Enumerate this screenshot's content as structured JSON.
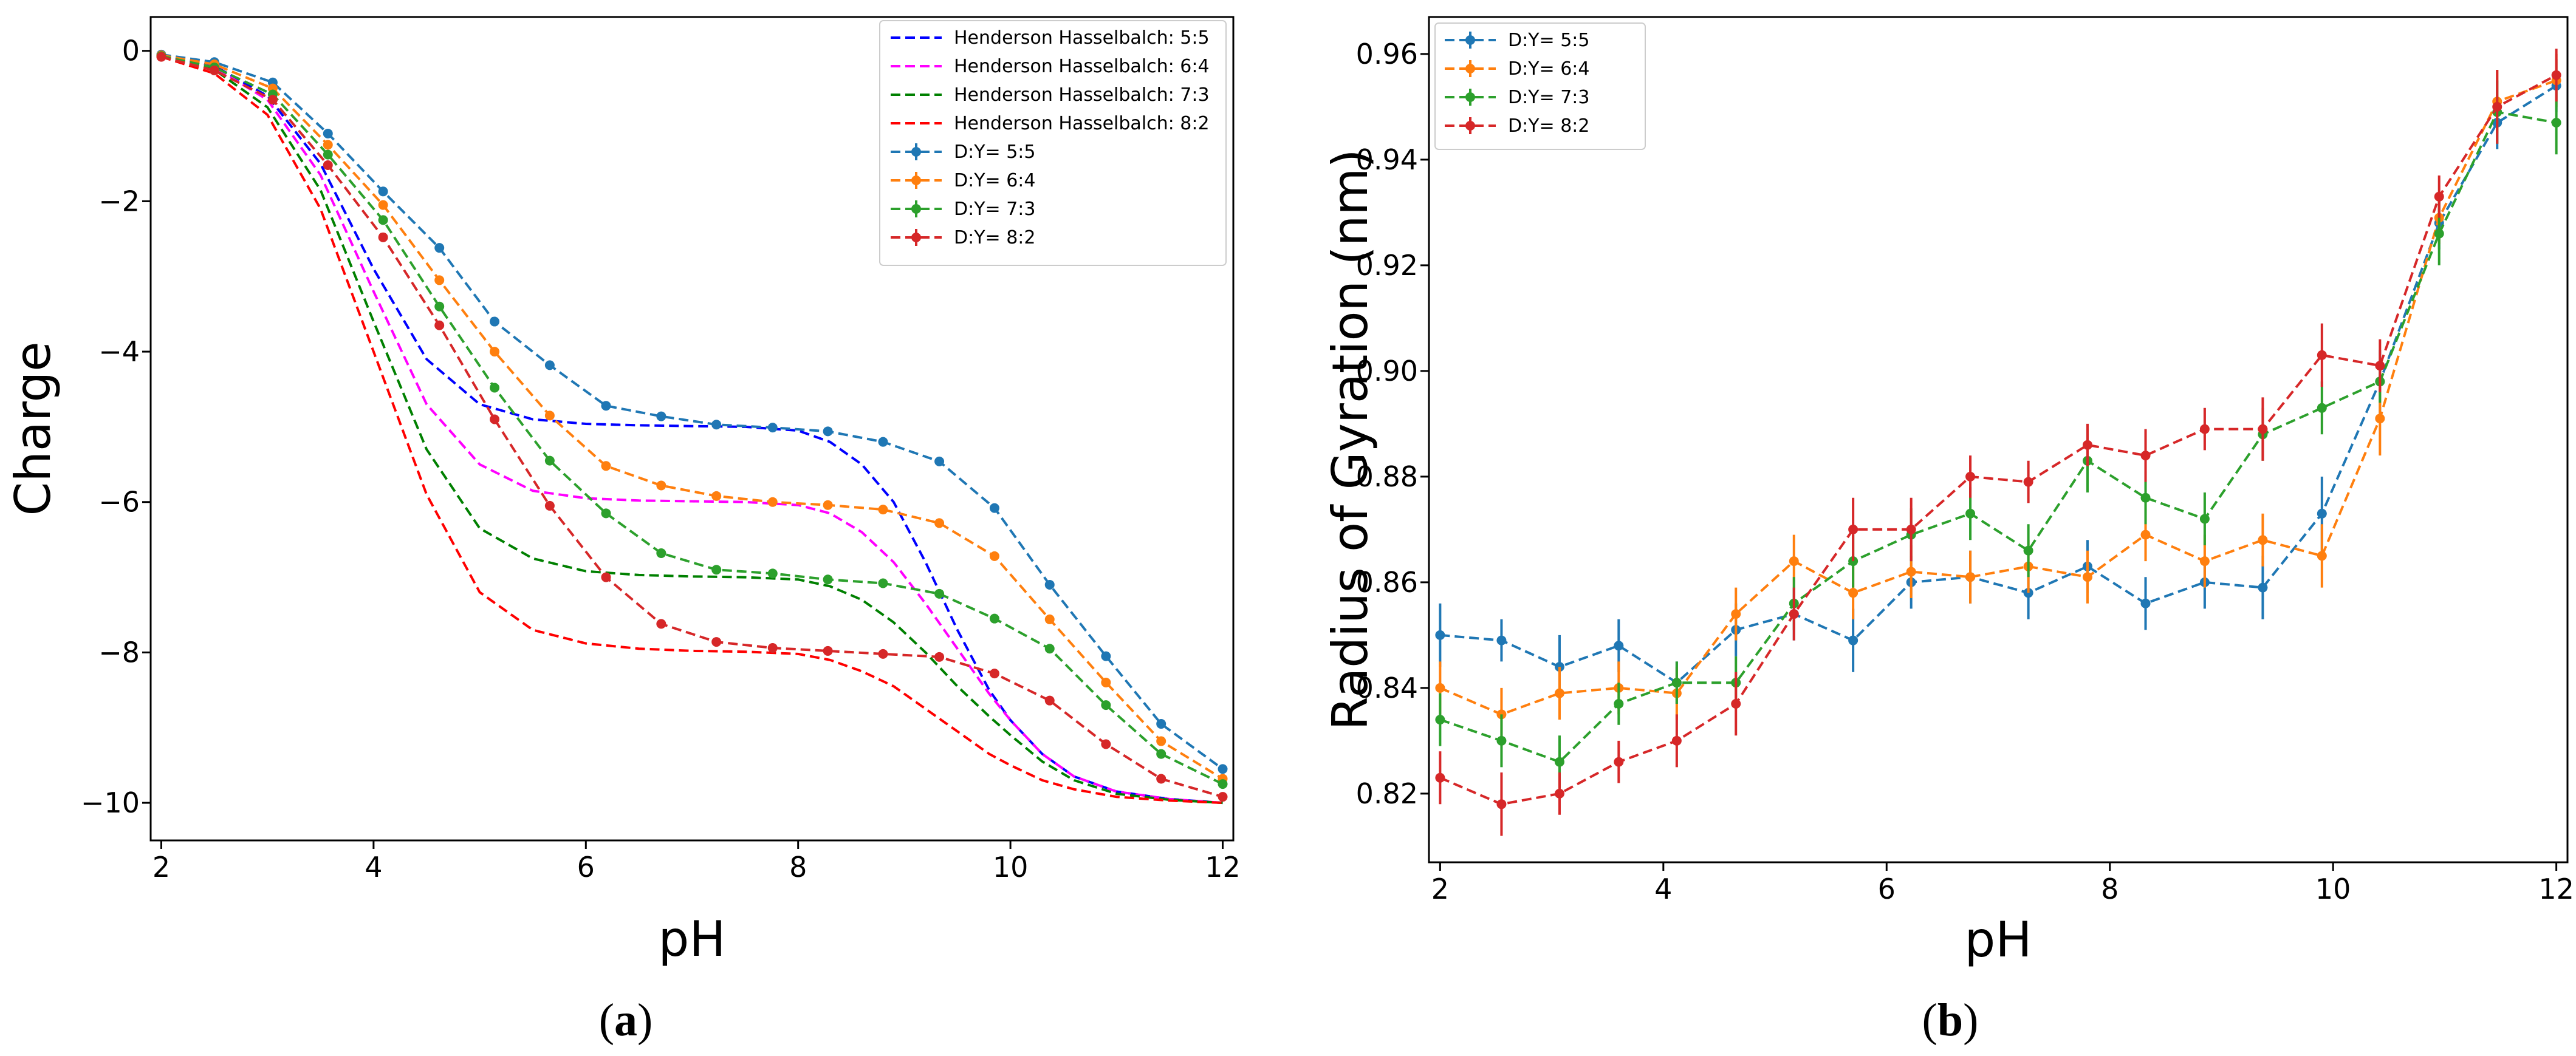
{
  "chart_data": [
    {
      "type": "line",
      "panel_label": "(a)",
      "panel_letter": "a",
      "xlabel": "pH",
      "ylabel": "Charge",
      "xlim": [
        1.9,
        12.1
      ],
      "ylim": [
        -10.5,
        0.45
      ],
      "xticks": [
        2,
        4,
        6,
        8,
        10,
        12
      ],
      "yticks": [
        0,
        -2,
        -4,
        -6,
        -8,
        -10
      ],
      "ytick_labels": [
        "0",
        "−2",
        "−4",
        "−6",
        "−8",
        "−10"
      ],
      "legend_position": "top-right",
      "hh_series": [
        {
          "name": "Henderson Hasselbalch: 5:5",
          "color": "#0000ff",
          "x": [
            2,
            2.5,
            3,
            3.5,
            4,
            4.5,
            5,
            5.5,
            6,
            6.5,
            7,
            7.5,
            8,
            8.3,
            8.6,
            8.9,
            9.2,
            9.5,
            9.8,
            10,
            10.3,
            10.6,
            11,
            11.5,
            12
          ],
          "y": [
            -0.05,
            -0.2,
            -0.6,
            -1.5,
            -2.9,
            -4.1,
            -4.7,
            -4.9,
            -4.96,
            -4.98,
            -4.99,
            -5.0,
            -5.05,
            -5.2,
            -5.5,
            -6.0,
            -6.8,
            -7.7,
            -8.5,
            -8.9,
            -9.35,
            -9.65,
            -9.85,
            -9.95,
            -10.0
          ]
        },
        {
          "name": "Henderson Hasselbalch: 6:4",
          "color": "#ff00ff",
          "x": [
            2,
            2.5,
            3,
            3.5,
            4,
            4.5,
            5,
            5.5,
            6,
            6.5,
            7,
            7.5,
            8,
            8.3,
            8.6,
            8.9,
            9.2,
            9.5,
            9.8,
            10,
            10.3,
            10.6,
            11,
            11.5,
            12
          ],
          "y": [
            -0.06,
            -0.22,
            -0.65,
            -1.65,
            -3.2,
            -4.7,
            -5.5,
            -5.85,
            -5.95,
            -5.98,
            -5.99,
            -6.0,
            -6.04,
            -6.15,
            -6.4,
            -6.8,
            -7.35,
            -7.95,
            -8.55,
            -8.9,
            -9.35,
            -9.65,
            -9.85,
            -9.95,
            -10.0
          ]
        },
        {
          "name": "Henderson Hasselbalch: 7:3",
          "color": "#008000",
          "x": [
            2,
            2.5,
            3,
            3.5,
            4,
            4.5,
            5,
            5.5,
            6,
            6.5,
            7,
            7.5,
            8,
            8.3,
            8.6,
            8.9,
            9.2,
            9.5,
            9.8,
            10,
            10.3,
            10.6,
            11,
            11.5,
            12
          ],
          "y": [
            -0.07,
            -0.25,
            -0.75,
            -1.85,
            -3.6,
            -5.3,
            -6.35,
            -6.75,
            -6.92,
            -6.97,
            -6.99,
            -7.0,
            -7.03,
            -7.12,
            -7.3,
            -7.6,
            -8.0,
            -8.45,
            -8.85,
            -9.1,
            -9.45,
            -9.7,
            -9.88,
            -9.96,
            -10.0
          ]
        },
        {
          "name": "Henderson Hasselbalch: 8:2",
          "color": "#ff0000",
          "x": [
            2,
            2.5,
            3,
            3.5,
            4,
            4.5,
            5,
            5.5,
            6,
            6.5,
            7,
            7.5,
            8,
            8.3,
            8.6,
            8.9,
            9.2,
            9.5,
            9.8,
            10,
            10.3,
            10.6,
            11,
            11.5,
            12
          ],
          "y": [
            -0.08,
            -0.3,
            -0.85,
            -2.1,
            -4.0,
            -5.9,
            -7.2,
            -7.7,
            -7.88,
            -7.95,
            -7.98,
            -7.99,
            -8.02,
            -8.1,
            -8.25,
            -8.45,
            -8.75,
            -9.05,
            -9.35,
            -9.5,
            -9.7,
            -9.82,
            -9.92,
            -9.97,
            -10.0
          ]
        }
      ],
      "sim_series": [
        {
          "name": "D:Y= 5:5",
          "color": "#1f77b4",
          "x": [
            2,
            2.5,
            3.05,
            3.57,
            4.09,
            4.62,
            5.14,
            5.66,
            6.19,
            6.71,
            7.23,
            7.76,
            8.28,
            8.8,
            9.33,
            9.85,
            10.37,
            10.9,
            11.42,
            12
          ],
          "y": [
            -0.05,
            -0.15,
            -0.42,
            -1.1,
            -1.87,
            -2.62,
            -3.6,
            -4.18,
            -4.72,
            -4.86,
            -4.97,
            -5.01,
            -5.06,
            -5.2,
            -5.46,
            -6.08,
            -7.1,
            -8.05,
            -8.95,
            -9.55
          ]
        },
        {
          "name": "D:Y= 6:4",
          "color": "#ff7f0e",
          "x": [
            2,
            2.5,
            3.05,
            3.57,
            4.09,
            4.62,
            5.14,
            5.66,
            6.19,
            6.71,
            7.23,
            7.76,
            8.28,
            8.8,
            9.33,
            9.85,
            10.37,
            10.9,
            11.42,
            12
          ],
          "y": [
            -0.06,
            -0.18,
            -0.5,
            -1.25,
            -2.05,
            -3.05,
            -4.0,
            -4.85,
            -5.52,
            -5.78,
            -5.92,
            -6.0,
            -6.04,
            -6.1,
            -6.28,
            -6.72,
            -7.56,
            -8.4,
            -9.18,
            -9.68
          ]
        },
        {
          "name": "D:Y= 7:3",
          "color": "#2ca02c",
          "x": [
            2,
            2.5,
            3.05,
            3.57,
            4.09,
            4.62,
            5.14,
            5.66,
            6.19,
            6.71,
            7.23,
            7.76,
            8.28,
            8.8,
            9.33,
            9.85,
            10.37,
            10.9,
            11.42,
            12
          ],
          "y": [
            -0.07,
            -0.22,
            -0.58,
            -1.38,
            -2.25,
            -3.4,
            -4.48,
            -5.45,
            -6.15,
            -6.68,
            -6.9,
            -6.95,
            -7.03,
            -7.08,
            -7.22,
            -7.55,
            -7.95,
            -8.7,
            -9.35,
            -9.75
          ]
        },
        {
          "name": "D:Y= 8:2",
          "color": "#d62728",
          "x": [
            2,
            2.5,
            3.05,
            3.57,
            4.09,
            4.62,
            5.14,
            5.66,
            6.19,
            6.71,
            7.23,
            7.76,
            8.28,
            8.8,
            9.33,
            9.85,
            10.37,
            10.9,
            11.42,
            12
          ],
          "y": [
            -0.08,
            -0.26,
            -0.65,
            -1.52,
            -2.48,
            -3.65,
            -4.9,
            -6.05,
            -7.0,
            -7.62,
            -7.86,
            -7.94,
            -7.98,
            -8.02,
            -8.06,
            -8.28,
            -8.64,
            -9.22,
            -9.68,
            -9.92
          ]
        }
      ]
    },
    {
      "type": "line",
      "panel_label": "(b)",
      "panel_letter": "b",
      "xlabel": "pH",
      "ylabel": "Radius of Gyration (nm)",
      "xlim": [
        1.9,
        12.1
      ],
      "ylim": [
        0.807,
        0.967
      ],
      "xticks": [
        2,
        4,
        6,
        8,
        10,
        12
      ],
      "yticks": [
        0.82,
        0.84,
        0.86,
        0.88,
        0.9,
        0.92,
        0.94,
        0.96
      ],
      "ytick_labels": [
        "0.82",
        "0.84",
        "0.86",
        "0.88",
        "0.90",
        "0.92",
        "0.94",
        "0.96"
      ],
      "legend_position": "top-left",
      "sim_series": [
        {
          "name": "D:Y= 5:5",
          "color": "#1f77b4",
          "x": [
            2,
            2.55,
            3.07,
            3.6,
            4.12,
            4.65,
            5.17,
            5.7,
            6.22,
            6.75,
            7.27,
            7.8,
            8.32,
            8.85,
            9.37,
            9.9,
            10.42,
            10.95,
            11.47,
            12
          ],
          "y": [
            0.85,
            0.849,
            0.844,
            0.848,
            0.841,
            0.851,
            0.854,
            0.849,
            0.86,
            0.861,
            0.858,
            0.863,
            0.856,
            0.86,
            0.859,
            0.873,
            0.898,
            0.928,
            0.947,
            0.954
          ],
          "err": [
            0.006,
            0.004,
            0.006,
            0.005,
            0.004,
            0.005,
            0.005,
            0.006,
            0.005,
            0.005,
            0.005,
            0.005,
            0.005,
            0.005,
            0.006,
            0.007,
            0.006,
            0.005,
            0.005,
            0.005
          ]
        },
        {
          "name": "D:Y= 6:4",
          "color": "#ff7f0e",
          "x": [
            2,
            2.55,
            3.07,
            3.6,
            4.12,
            4.65,
            5.17,
            5.7,
            6.22,
            6.75,
            7.27,
            7.8,
            8.32,
            8.85,
            9.37,
            9.9,
            10.42,
            10.95,
            11.47,
            12
          ],
          "y": [
            0.84,
            0.835,
            0.839,
            0.84,
            0.839,
            0.854,
            0.864,
            0.858,
            0.862,
            0.861,
            0.863,
            0.861,
            0.869,
            0.864,
            0.868,
            0.865,
            0.891,
            0.929,
            0.951,
            0.955
          ],
          "err": [
            0.005,
            0.005,
            0.005,
            0.005,
            0.005,
            0.005,
            0.005,
            0.005,
            0.005,
            0.005,
            0.005,
            0.005,
            0.005,
            0.005,
            0.005,
            0.006,
            0.007,
            0.005,
            0.006,
            0.005
          ]
        },
        {
          "name": "D:Y= 7:3",
          "color": "#2ca02c",
          "x": [
            2,
            2.55,
            3.07,
            3.6,
            4.12,
            4.65,
            5.17,
            5.7,
            6.22,
            6.75,
            7.27,
            7.8,
            8.32,
            8.85,
            9.37,
            9.9,
            10.42,
            10.95,
            11.47,
            12
          ],
          "y": [
            0.834,
            0.83,
            0.826,
            0.837,
            0.841,
            0.841,
            0.856,
            0.864,
            0.869,
            0.873,
            0.866,
            0.883,
            0.876,
            0.872,
            0.888,
            0.893,
            0.898,
            0.926,
            0.949,
            0.947
          ],
          "err": [
            0.005,
            0.005,
            0.005,
            0.004,
            0.004,
            0.005,
            0.005,
            0.005,
            0.005,
            0.005,
            0.005,
            0.006,
            0.005,
            0.005,
            0.005,
            0.005,
            0.004,
            0.006,
            0.006,
            0.006
          ]
        },
        {
          "name": "D:Y= 8:2",
          "color": "#d62728",
          "x": [
            2,
            2.55,
            3.07,
            3.6,
            4.12,
            4.65,
            5.17,
            5.7,
            6.22,
            6.75,
            7.27,
            7.8,
            8.32,
            8.85,
            9.37,
            9.9,
            10.42,
            10.95,
            11.47,
            12
          ],
          "y": [
            0.823,
            0.818,
            0.82,
            0.826,
            0.83,
            0.837,
            0.854,
            0.87,
            0.87,
            0.88,
            0.879,
            0.886,
            0.884,
            0.889,
            0.889,
            0.903,
            0.901,
            0.933,
            0.95,
            0.956
          ],
          "err": [
            0.005,
            0.006,
            0.004,
            0.004,
            0.005,
            0.006,
            0.005,
            0.006,
            0.006,
            0.004,
            0.004,
            0.004,
            0.005,
            0.004,
            0.006,
            0.006,
            0.005,
            0.004,
            0.007,
            0.005
          ]
        }
      ]
    }
  ]
}
